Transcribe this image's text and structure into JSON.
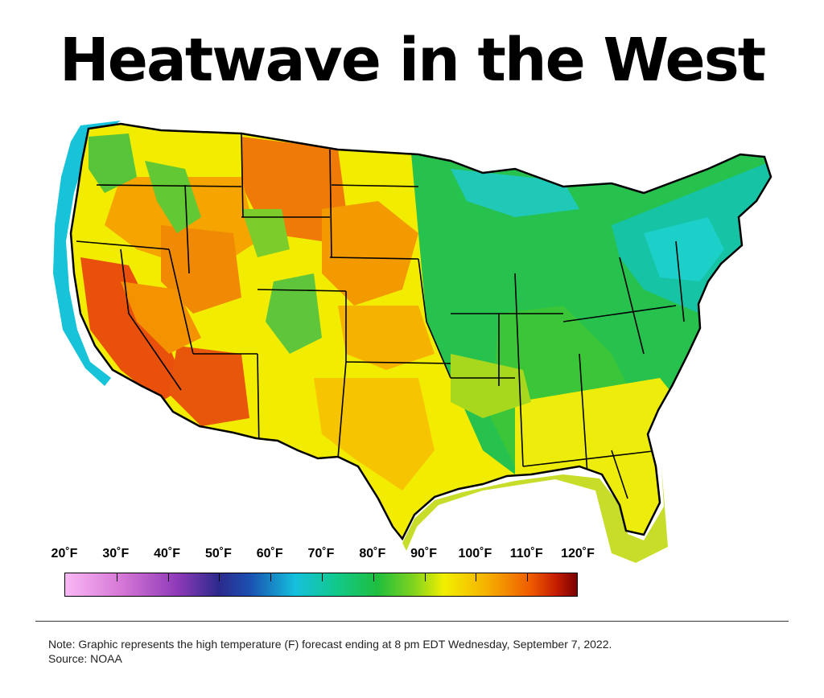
{
  "title": "Heatwave in the West",
  "legend": {
    "labels": [
      "20˚F",
      "30˚F",
      "40˚F",
      "50˚F",
      "60˚F",
      "70˚F",
      "80˚F",
      "90˚F",
      "100˚F",
      "110˚F",
      "120˚F"
    ],
    "unit": "F",
    "min": 20,
    "max": 120
  },
  "footer": {
    "note": "Note: Graphic represents the high temperature (F) forecast ending at 8 pm EDT Wednesday, September 7, 2022.",
    "source": "Source: NOAA"
  },
  "colors": {
    "ocean_cyan": "#16c3d8",
    "cool_green": "#22c05a",
    "warm_yellow": "#f2ec00",
    "hot_orange": "#f59a00",
    "very_hot_red": "#e8460a",
    "border": "#000000"
  }
}
